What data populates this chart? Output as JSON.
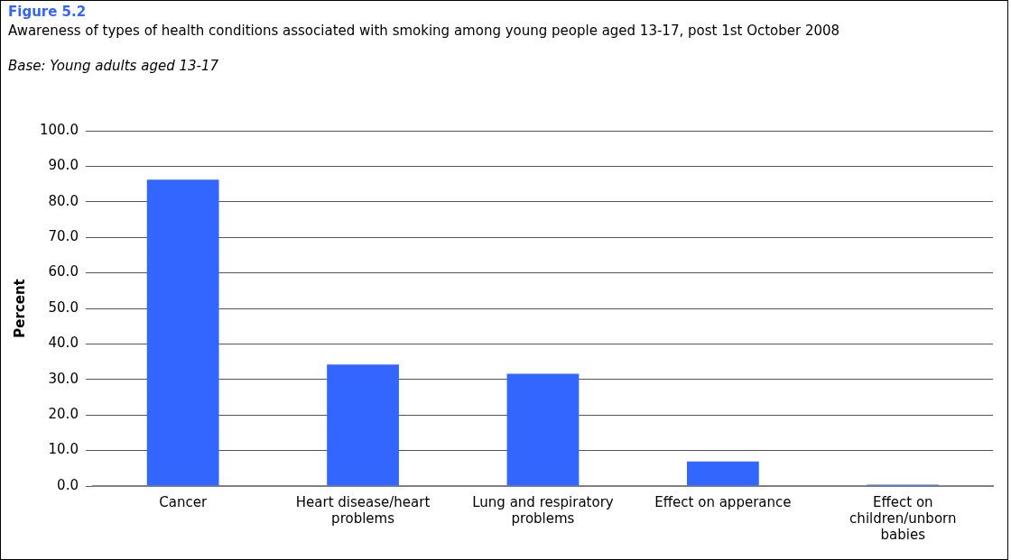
{
  "chart_data": {
    "type": "bar",
    "title": "Figure 5.2",
    "subtitle": "Awareness of types of health conditions associated with smoking among young people aged 13-17, post 1st October 2008",
    "annotations": [
      "Base: Young adults aged 13-17"
    ],
    "ylabel": "Percent",
    "categories": [
      "Cancer",
      "Heart disease/heart problems",
      "Lung and respiratory problems",
      "Effect on apperance",
      "Effect on children/unborn babies"
    ],
    "values": [
      86.2,
      34.2,
      31.6,
      6.9,
      0.4
    ],
    "color": "#3366ff",
    "ylim": [
      0,
      100
    ],
    "yticks": [
      {
        "value": 0,
        "label": "0.0"
      },
      {
        "value": 10,
        "label": "10.0"
      },
      {
        "value": 20,
        "label": "20.0"
      },
      {
        "value": 30,
        "label": "30.0"
      },
      {
        "value": 40,
        "label": "40.0"
      },
      {
        "value": 50,
        "label": "50.0"
      },
      {
        "value": 60,
        "label": "60.0"
      },
      {
        "value": 70,
        "label": "70.0"
      },
      {
        "value": 80,
        "label": "80.0"
      },
      {
        "value": 90,
        "label": "90.0"
      },
      {
        "value": 100,
        "label": "100.0"
      }
    ],
    "grid": "y",
    "legend": false
  }
}
